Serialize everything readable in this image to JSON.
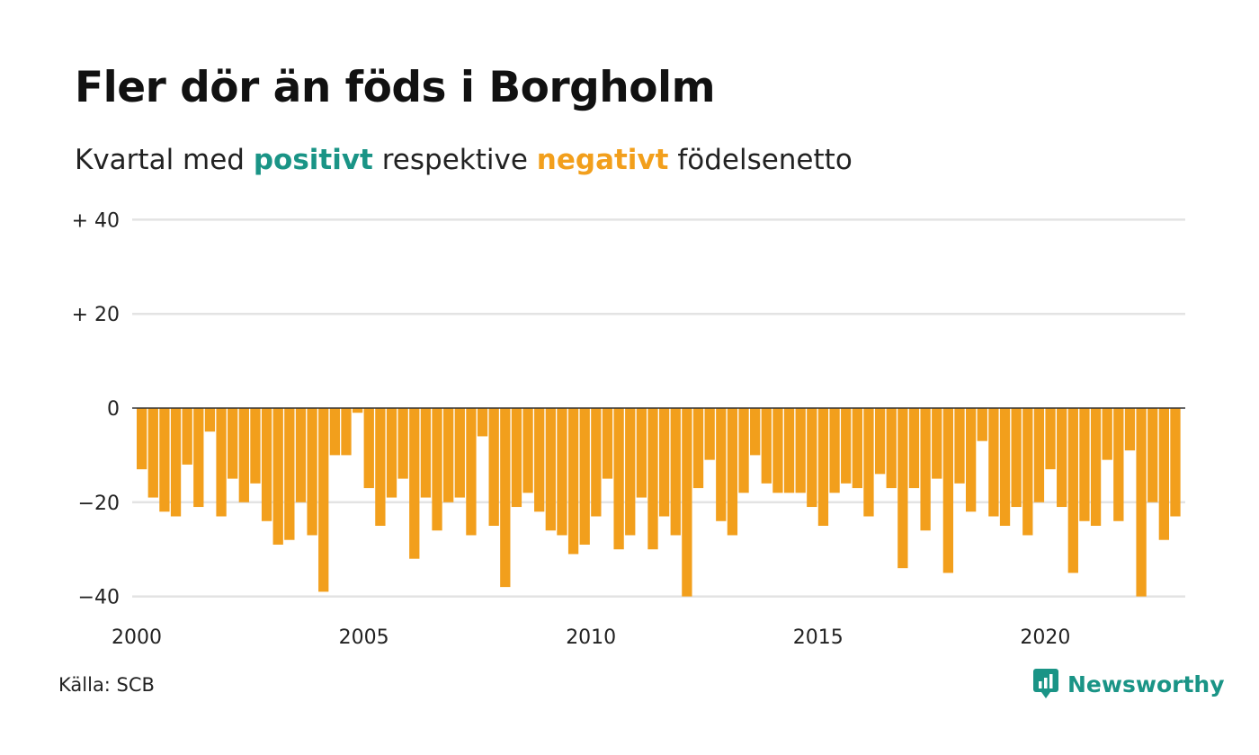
{
  "title": "Fler dör än föds i Borgholm",
  "subtitle": {
    "prefix": "Kvartal med ",
    "positive": "positivt",
    "middle": " respektive ",
    "negative": "negativt",
    "suffix": " födelsenetto"
  },
  "source": "Källa: SCB",
  "logo_text": "Newsworthy",
  "colors": {
    "positive": "#1a9486",
    "negative": "#f29f1c",
    "grid": "#e3e3e3",
    "zero_line": "#333333"
  },
  "chart_data": {
    "type": "bar",
    "x_start": "2000 Q1",
    "x_ticks": [
      2000,
      2005,
      2010,
      2015,
      2020
    ],
    "y_ticks": [
      {
        "value": 40,
        "label": "+ 40"
      },
      {
        "value": 20,
        "label": "+ 20"
      },
      {
        "value": 0,
        "label": "0"
      },
      {
        "value": -20,
        "label": "−20"
      },
      {
        "value": -40,
        "label": "−40"
      }
    ],
    "ylim": [
      -40,
      40
    ],
    "grid": true,
    "values": [
      -13,
      -19,
      -22,
      -23,
      -12,
      -21,
      -5,
      -23,
      -15,
      -20,
      -16,
      -24,
      -29,
      -28,
      -20,
      -27,
      -39,
      -10,
      -10,
      -1,
      -17,
      -25,
      -19,
      -15,
      -32,
      -19,
      -26,
      -20,
      -19,
      -27,
      -6,
      -25,
      -38,
      -21,
      -18,
      -22,
      -26,
      -27,
      -31,
      -29,
      -23,
      -15,
      -30,
      -27,
      -19,
      -30,
      -23,
      -27,
      -40,
      -17,
      -11,
      -24,
      -27,
      -18,
      -10,
      -16,
      -18,
      -18,
      -18,
      -21,
      -25,
      -18,
      -16,
      -17,
      -23,
      -14,
      -17,
      -34,
      -17,
      -26,
      -15,
      -35,
      -16,
      -22,
      -7,
      -23,
      -25,
      -21,
      -27,
      -20,
      -13,
      -21,
      -35,
      -24,
      -25,
      -11,
      -24,
      -9,
      -40,
      -20,
      -28,
      -23
    ]
  }
}
